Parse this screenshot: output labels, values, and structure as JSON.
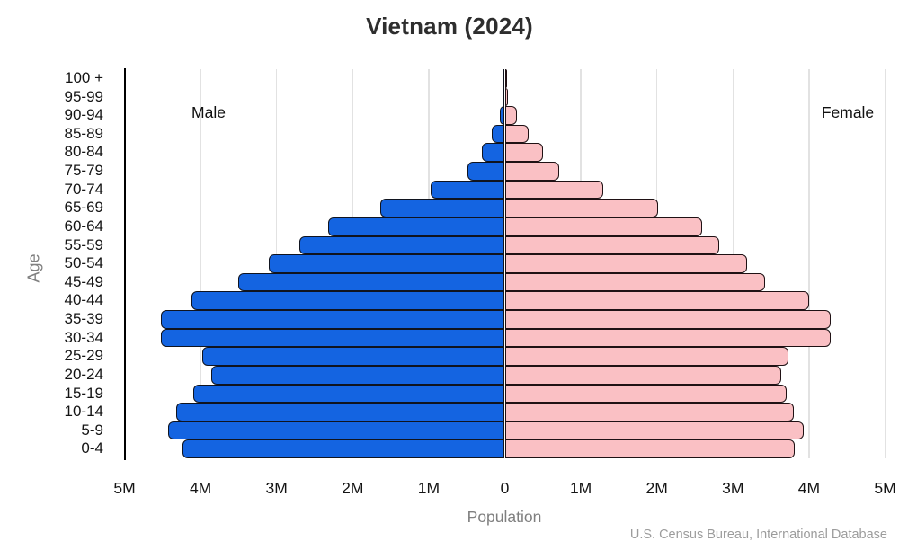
{
  "chart_data": {
    "type": "bar",
    "subtype": "population-pyramid",
    "title": "Vietnam (2024)",
    "xlabel": "Population",
    "ylabel": "Age",
    "source": "U.S. Census Bureau, International Database",
    "units": "millions of people",
    "xlim": [
      -5,
      5
    ],
    "grid": true,
    "x_ticks": [
      {
        "label": "5M",
        "value": -5
      },
      {
        "label": "4M",
        "value": -4
      },
      {
        "label": "3M",
        "value": -3
      },
      {
        "label": "2M",
        "value": -2
      },
      {
        "label": "1M",
        "value": -1
      },
      {
        "label": "0",
        "value": 0
      },
      {
        "label": "1M",
        "value": 1
      },
      {
        "label": "2M",
        "value": 2
      },
      {
        "label": "3M",
        "value": 3
      },
      {
        "label": "4M",
        "value": 4
      },
      {
        "label": "5M",
        "value": 5
      }
    ],
    "age_groups": [
      "100 +",
      "95-99",
      "90-94",
      "85-89",
      "80-84",
      "75-79",
      "70-74",
      "65-69",
      "60-64",
      "55-59",
      "50-54",
      "45-49",
      "40-44",
      "35-39",
      "30-34",
      "25-29",
      "20-24",
      "15-19",
      "10-14",
      "5-9",
      "0-4"
    ],
    "series": [
      {
        "name": "Male",
        "side": "left",
        "color": "#1464e1",
        "values_millions": [
          0.01,
          0.02,
          0.07,
          0.17,
          0.3,
          0.49,
          0.97,
          1.64,
          2.32,
          2.7,
          3.1,
          3.51,
          4.12,
          4.52,
          4.52,
          3.98,
          3.86,
          4.1,
          4.32,
          4.43,
          4.24
        ]
      },
      {
        "name": "Female",
        "side": "right",
        "color": "#fac0c4",
        "values_millions": [
          0.01,
          0.04,
          0.16,
          0.31,
          0.5,
          0.72,
          1.29,
          2.01,
          2.6,
          2.82,
          3.18,
          3.42,
          4.0,
          4.29,
          4.29,
          3.73,
          3.64,
          3.71,
          3.8,
          3.93,
          3.81
        ]
      }
    ]
  }
}
